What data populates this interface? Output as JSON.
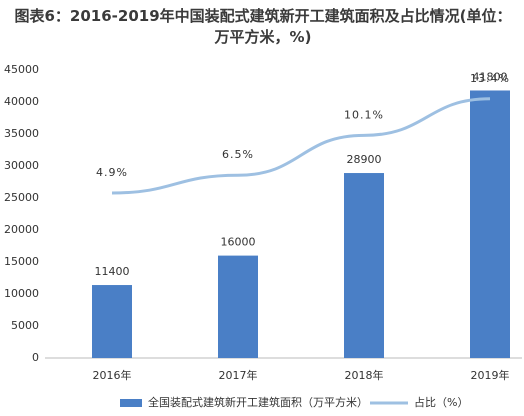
{
  "chart_data": {
    "type": "bar-line",
    "title": "图表6：2016-2019年中国装配式建筑新开工建筑面积及占比情况(单位：万平方米，%)",
    "categories": [
      "2016年",
      "2017年",
      "2018年",
      "2019年"
    ],
    "series": [
      {
        "name": "全国装配式建筑新开工建筑面积（万平方米）",
        "type": "bar",
        "color": "#4a7fc6",
        "values": [
          11400,
          16000,
          28900,
          41800
        ]
      },
      {
        "name": "占比（%）",
        "type": "line",
        "axis": "y2",
        "color": "#9ec0e2",
        "values": [
          4.9,
          6.5,
          10.1,
          13.4
        ],
        "value_labels": [
          "4.9%",
          "6.5%",
          "10.1%",
          "13.4%"
        ]
      }
    ],
    "ylim": [
      0,
      45000
    ],
    "yticks": [
      0,
      5000,
      10000,
      15000,
      20000,
      25000,
      30000,
      35000,
      40000,
      45000
    ],
    "y2lim": [
      -10,
      16
    ],
    "legend": "bottom"
  }
}
